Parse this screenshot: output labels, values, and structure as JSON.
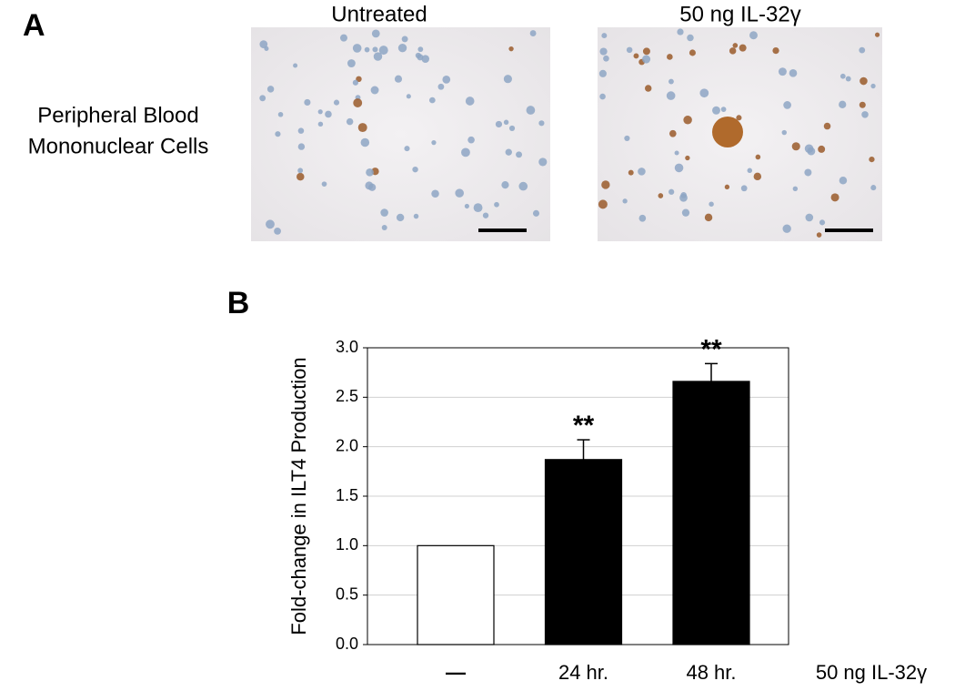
{
  "panel_a": {
    "label": "A",
    "columns": [
      "Untreated",
      "50 ng IL-32γ"
    ],
    "row_label": [
      "Peripheral Blood",
      "Mononuclear Cells"
    ]
  },
  "chart_data": {
    "type": "bar",
    "panel_label": "B",
    "ylabel": "Fold-change in ILT4 Production",
    "xlabel": "50 ng IL-32γ",
    "categories": [
      "—",
      "24 hr.",
      "48 hr."
    ],
    "values": [
      1.0,
      1.87,
      2.66
    ],
    "errors": [
      null,
      0.2,
      0.18
    ],
    "colors": [
      "#ffffff",
      "#000000",
      "#000000"
    ],
    "significance": [
      null,
      "**",
      "**"
    ],
    "ylim": [
      0,
      3
    ],
    "yticks": [
      {
        "value": 0,
        "label": "0.0"
      },
      0.5,
      {
        "value": 1,
        "label": "1.0"
      },
      1.5,
      {
        "value": 2,
        "label": "2.0"
      },
      2.5,
      {
        "value": 3,
        "label": "3.0"
      }
    ],
    "grid": true
  }
}
